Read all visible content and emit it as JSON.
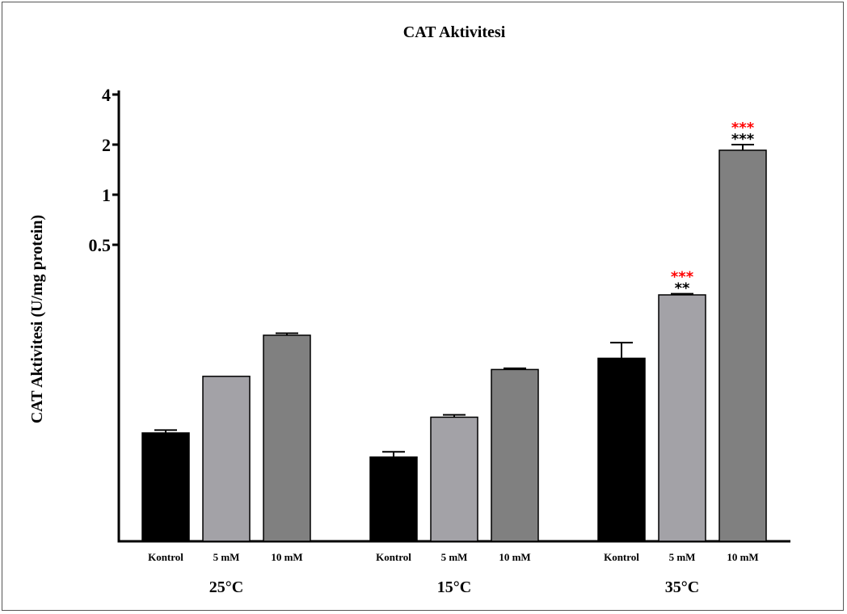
{
  "chart_data": {
    "type": "bar",
    "title": "CAT Aktivitesi",
    "ylabel": "CAT Aktivitesi (U/mg protein)",
    "xlabel": "",
    "y_scale": "log2",
    "ylim": [
      0.03,
      4
    ],
    "yticks": [
      {
        "value": 0.5,
        "label": "0.5"
      },
      {
        "value": 1,
        "label": "1"
      },
      {
        "value": 2,
        "label": "2"
      },
      {
        "value": 4,
        "label": "4"
      }
    ],
    "groups": [
      {
        "label": "25°C",
        "bars": [
          {
            "label": "Kontrol",
            "value": 0.037,
            "error": 0.0015,
            "color": "#000000",
            "sig_top": "",
            "sig_bottom": ""
          },
          {
            "label": "5 mM",
            "value": 0.081,
            "error": 0,
            "color": "#a3a2a7",
            "sig_top": "",
            "sig_bottom": ""
          },
          {
            "label": "10 mM",
            "value": 0.143,
            "error": 0.004,
            "color": "#808080",
            "sig_top": "",
            "sig_bottom": ""
          }
        ]
      },
      {
        "label": "15°C",
        "bars": [
          {
            "label": "Kontrol",
            "value": 0.0265,
            "error": 0.002,
            "color": "#000000",
            "sig_top": "",
            "sig_bottom": ""
          },
          {
            "label": "5 mM",
            "value": 0.046,
            "error": 0.0015,
            "color": "#a3a2a7",
            "sig_top": "",
            "sig_bottom": ""
          },
          {
            "label": "10 mM",
            "value": 0.089,
            "error": 0.0015,
            "color": "#808080",
            "sig_top": "",
            "sig_bottom": ""
          }
        ]
      },
      {
        "label": "35°C",
        "bars": [
          {
            "label": "Kontrol",
            "value": 0.104,
            "error": 0.025,
            "color": "#000000",
            "sig_top": "",
            "sig_bottom": ""
          },
          {
            "label": "5 mM",
            "value": 0.25,
            "error": 0.004,
            "color": "#a3a2a7",
            "sig_top": "***",
            "sig_bottom": "**"
          },
          {
            "label": "10 mM",
            "value": 1.85,
            "error": 0.15,
            "color": "#808080",
            "sig_top": "***",
            "sig_bottom": "***"
          }
        ]
      }
    ],
    "colors": {
      "sig_top": "#ff0000",
      "sig_bottom": "#000000"
    },
    "grid": false,
    "legend": "none"
  }
}
